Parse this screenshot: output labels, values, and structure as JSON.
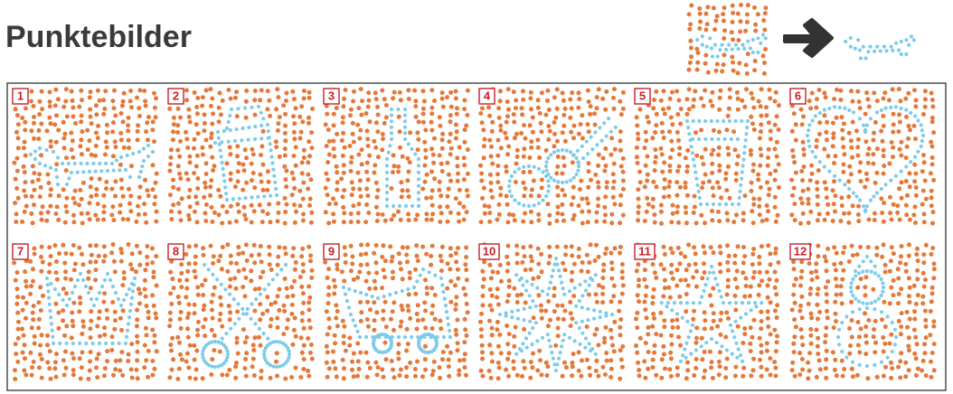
{
  "title": "Punktebilder",
  "panels": [
    "1",
    "2",
    "3",
    "4",
    "5",
    "6",
    "7",
    "8",
    "9",
    "10",
    "11",
    "12"
  ]
}
